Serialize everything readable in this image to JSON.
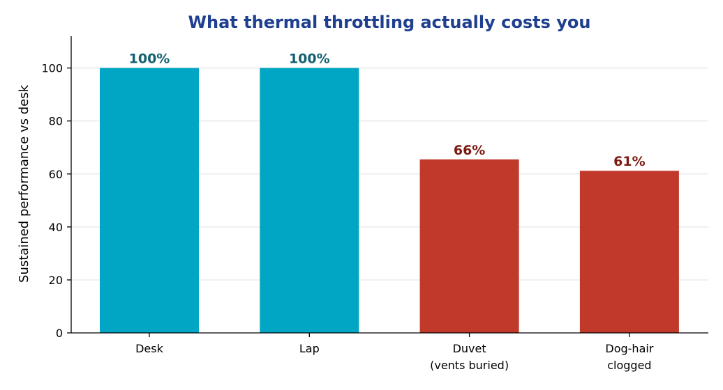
{
  "chart_data": {
    "type": "bar",
    "title": "What thermal throttling actually costs you",
    "xlabel": "",
    "ylabel": "Sustained performance vs desk",
    "categories": [
      [
        "Desk"
      ],
      [
        "Lap"
      ],
      [
        "Duvet",
        "(vents buried)"
      ],
      [
        "Dog-hair",
        "clogged"
      ]
    ],
    "values": [
      100,
      100,
      65.5,
      61.2
    ],
    "value_labels": [
      "100%",
      "100%",
      "66%",
      "61%"
    ],
    "ylim": [
      0,
      112
    ],
    "yticks": [
      0,
      20,
      40,
      60,
      80,
      100
    ],
    "grid": "horizontal",
    "colors": {
      "title": "#1f3f8f",
      "bar_good": "#00a6c4",
      "bar_bad": "#c0392b",
      "label_good": "#13606e",
      "label_bad": "#7b1a12",
      "grid": "#e6e6e6",
      "axis": "#000000"
    },
    "bar_color_groups": [
      "good",
      "good",
      "bad",
      "bad"
    ]
  }
}
